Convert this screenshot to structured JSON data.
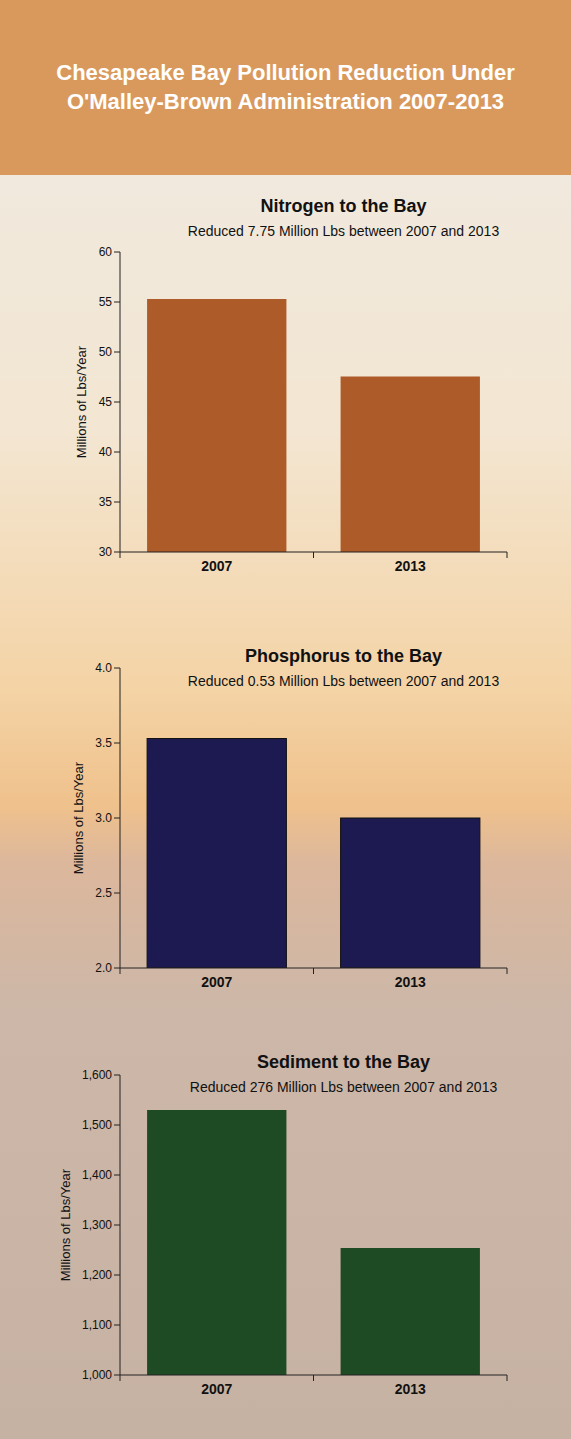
{
  "header": {
    "title": "Chesapeake Bay Pollution Reduction Under O'Malley-Brown Administration 2007-2013"
  },
  "chart_data": [
    {
      "type": "bar",
      "title": "Nitrogen to the Bay",
      "subtitle": "Reduced 7.75 Million Lbs between 2007 and 2013",
      "y_label": "Millions of Lbs/Year",
      "categories": [
        "2007",
        "2013"
      ],
      "values": [
        55.3,
        47.55
      ],
      "color": "#ad5b28",
      "ylim": [
        30,
        60
      ],
      "yticks": [
        30,
        35,
        40,
        45,
        50,
        55,
        60
      ]
    },
    {
      "type": "bar",
      "title": "Phosphorus to the Bay",
      "subtitle": "Reduced 0.53 Million Lbs between 2007 and 2013",
      "y_label": "Millions of Lbs/Year",
      "categories": [
        "2007",
        "2013"
      ],
      "values": [
        3.53,
        3.0
      ],
      "color": "#1d1a52",
      "ylim": [
        2,
        4
      ],
      "yticks": [
        {
          "value": 2,
          "label": "2.0"
        },
        {
          "value": 2.5,
          "label": "2.5"
        },
        {
          "value": 3,
          "label": "3.0"
        },
        {
          "value": 3.5,
          "label": "3.5"
        },
        {
          "value": 4,
          "label": "4.0"
        }
      ]
    },
    {
      "type": "bar",
      "title": "Sediment to the Bay",
      "subtitle": "Reduced 276 Million Lbs between 2007 and 2013",
      "y_label": "Millions of Lbs/Year",
      "categories": [
        "2007",
        "2013"
      ],
      "values": [
        1530,
        1254
      ],
      "color": "#1e4a24",
      "ylim": [
        1000,
        1600
      ],
      "yticks": [
        {
          "value": 1000,
          "label": "1,000"
        },
        {
          "value": 1100,
          "label": "1,100"
        },
        {
          "value": 1200,
          "label": "1,200"
        },
        {
          "value": 1300,
          "label": "1,300"
        },
        {
          "value": 1400,
          "label": "1,400"
        },
        {
          "value": 1500,
          "label": "1,500"
        },
        {
          "value": 1600,
          "label": "1,600"
        }
      ]
    }
  ]
}
